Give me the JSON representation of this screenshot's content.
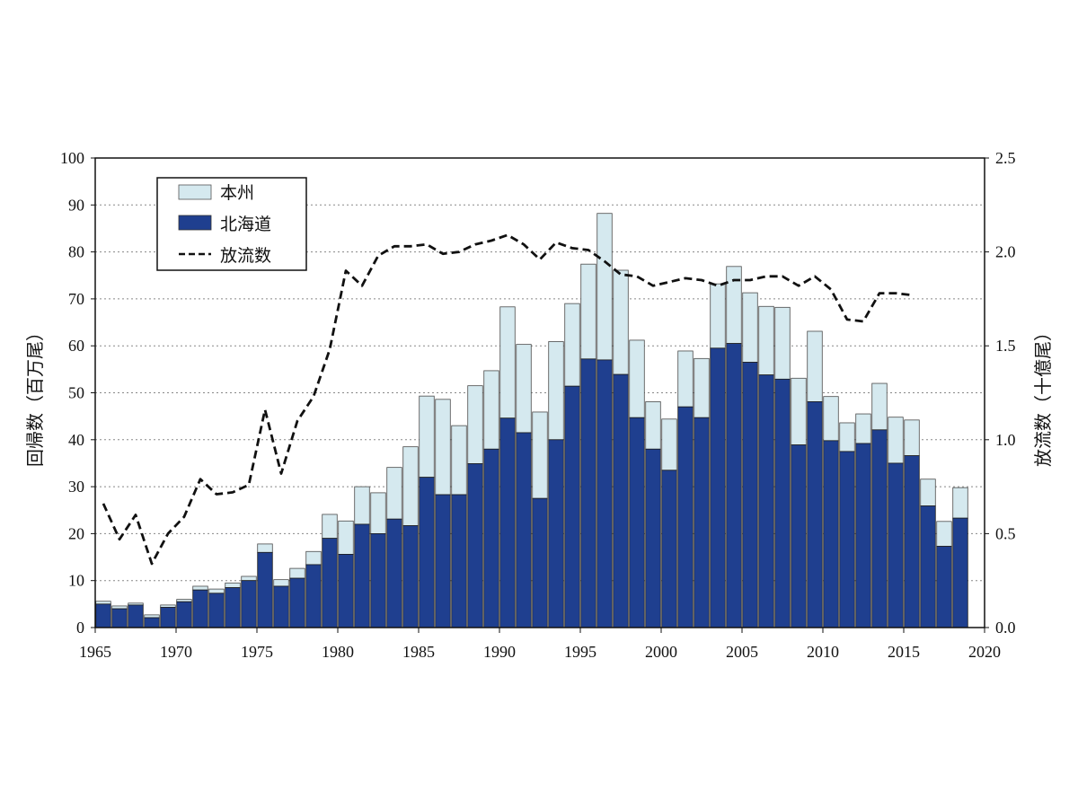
{
  "chart_data": {
    "type": "bar",
    "stacked": true,
    "grid": "horizontal dotted",
    "legend_position": "top-left",
    "y_left_label": "回帰数（百万尾）",
    "y_right_label": "放流数（十億尾）",
    "y_left_range": [
      0,
      100
    ],
    "y_right_range": [
      0.0,
      2.5
    ],
    "x_ticks": [
      "1965",
      "1970",
      "1975",
      "1980",
      "1985",
      "1990",
      "1995",
      "2000",
      "2005",
      "2010",
      "2015",
      "2020"
    ],
    "y_left_ticks": [
      "0",
      "10",
      "20",
      "30",
      "40",
      "50",
      "60",
      "70",
      "80",
      "90",
      "100"
    ],
    "y_right_ticks": [
      "0.0",
      "0.5",
      "1.0",
      "1.5",
      "2.0",
      "2.5"
    ],
    "years": [
      1965,
      1966,
      1967,
      1968,
      1969,
      1970,
      1971,
      1972,
      1973,
      1974,
      1975,
      1976,
      1977,
      1978,
      1979,
      1980,
      1981,
      1982,
      1983,
      1984,
      1985,
      1986,
      1987,
      1988,
      1989,
      1990,
      1991,
      1992,
      1993,
      1994,
      1995,
      1996,
      1997,
      1998,
      1999,
      2000,
      2001,
      2002,
      2003,
      2004,
      2005,
      2006,
      2007,
      2008,
      2009,
      2010,
      2011,
      2012,
      2013,
      2014,
      2015,
      2016,
      2017,
      2018
    ],
    "series": [
      {
        "name": "北海道",
        "color": "#1f3f8f",
        "values": [
          5.0,
          4.0,
          4.8,
          2.1,
          4.3,
          5.5,
          8.0,
          7.3,
          8.5,
          10.0,
          16.0,
          8.8,
          10.5,
          13.4,
          19.0,
          15.6,
          22.0,
          20.0,
          23.1,
          21.7,
          32.0,
          28.3,
          28.3,
          34.9,
          38.0,
          44.6,
          41.5,
          27.5,
          40.0,
          51.4,
          57.2,
          57.0,
          53.9,
          44.7,
          38.0,
          33.5,
          47.0,
          44.7,
          59.5,
          60.5,
          56.5,
          53.8,
          52.9,
          38.9,
          48.1,
          39.8,
          37.5,
          39.2,
          42.1,
          35.0,
          36.6,
          25.9,
          17.3,
          23.3
        ]
      },
      {
        "name": "本州",
        "color": "#d5e9ef",
        "values": [
          0.6,
          0.6,
          0.4,
          0.6,
          0.5,
          0.5,
          0.8,
          0.9,
          1.0,
          0.9,
          1.8,
          1.4,
          2.1,
          2.8,
          5.1,
          7.1,
          8.0,
          8.7,
          11.0,
          16.8,
          17.3,
          20.3,
          14.7,
          16.6,
          16.7,
          23.7,
          18.8,
          18.4,
          20.9,
          17.6,
          20.2,
          31.2,
          22.2,
          16.5,
          10.1,
          10.9,
          11.9,
          12.6,
          13.7,
          16.4,
          14.8,
          14.6,
          15.3,
          14.2,
          15.0,
          9.4,
          6.1,
          6.3,
          9.9,
          9.8,
          7.6,
          5.7,
          5.3,
          6.5
        ]
      }
    ],
    "line_series": {
      "name": "放流数",
      "axis": "right",
      "style": "dashed",
      "color": "#111111",
      "years": [
        1965,
        1966,
        1967,
        1968,
        1969,
        1970,
        1971,
        1972,
        1973,
        1974,
        1975,
        1976,
        1977,
        1978,
        1979,
        1980,
        1981,
        1982,
        1983,
        1984,
        1985,
        1986,
        1987,
        1988,
        1989,
        1990,
        1991,
        1992,
        1993,
        1994,
        1995,
        1996,
        1997,
        1998,
        1999,
        2000,
        2001,
        2002,
        2003,
        2004,
        2005,
        2006,
        2007,
        2008,
        2009,
        2010,
        2011,
        2012,
        2013,
        2014,
        2015
      ],
      "values": [
        0.66,
        0.47,
        0.6,
        0.34,
        0.5,
        0.59,
        0.79,
        0.71,
        0.72,
        0.76,
        1.16,
        0.82,
        1.1,
        1.23,
        1.48,
        1.9,
        1.82,
        1.98,
        2.03,
        2.03,
        2.04,
        1.99,
        2.0,
        2.04,
        2.06,
        2.09,
        2.04,
        1.96,
        2.05,
        2.02,
        2.01,
        1.95,
        1.88,
        1.87,
        1.82,
        1.84,
        1.86,
        1.85,
        1.82,
        1.85,
        1.85,
        1.87,
        1.87,
        1.82,
        1.87,
        1.8,
        1.64,
        1.63,
        1.78,
        1.78,
        1.77
      ]
    }
  }
}
